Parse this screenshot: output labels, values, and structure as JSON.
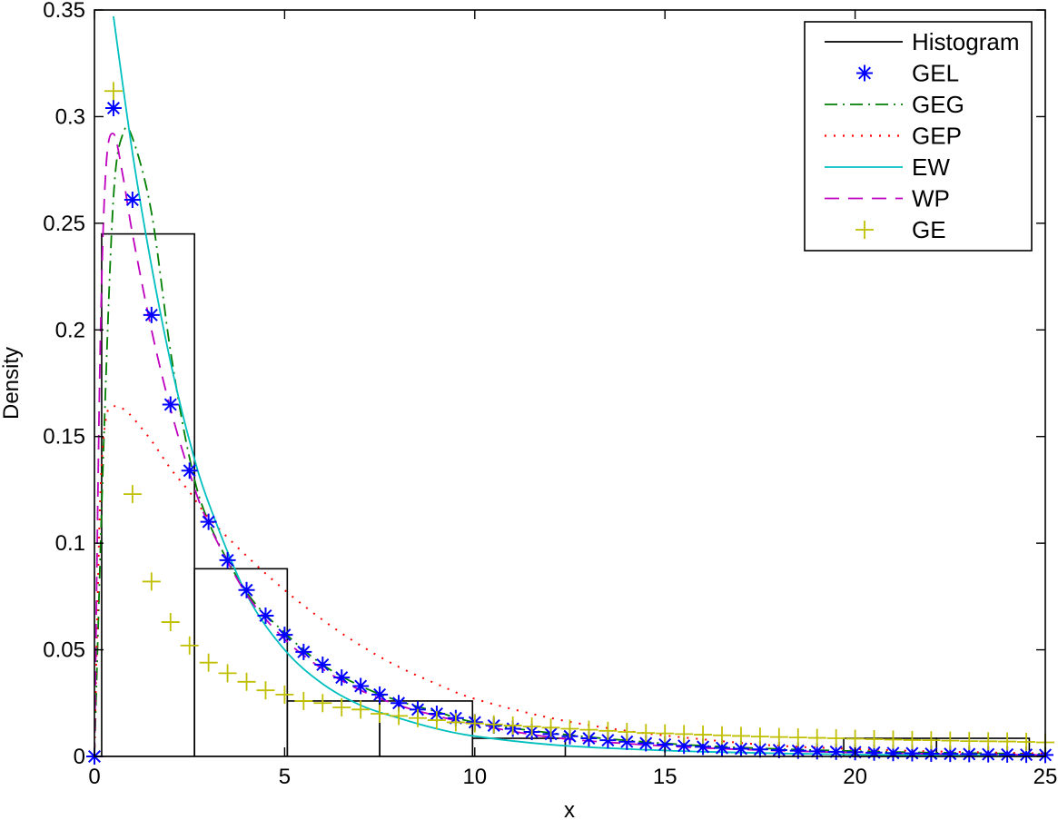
{
  "chart_data": {
    "type": "line",
    "title": "",
    "xlabel": "x",
    "ylabel": "Density",
    "xlim": [
      0,
      25
    ],
    "ylim": [
      0,
      0.35
    ],
    "grid": false,
    "legend_position": "upper right",
    "xticks": [
      "0",
      "5",
      "10",
      "15",
      "20",
      "25"
    ],
    "yticks": [
      "0",
      "0.05",
      "0.1",
      "0.15",
      "0.2",
      "0.25",
      "0.3",
      "0.35"
    ],
    "histogram": {
      "name": "Histogram",
      "color": "#000000",
      "bin_edges": [
        0.19,
        2.63,
        5.07,
        7.5,
        9.94,
        12.38,
        14.82,
        17.26,
        19.7,
        22.14,
        24.58
      ],
      "heights": [
        0.245,
        0.088,
        0.026,
        0.026,
        0.0085,
        0.0,
        0.0,
        0.0,
        0.0085,
        0.0085
      ]
    },
    "series": [
      {
        "name": "GEL",
        "style": "marker-star",
        "color": "#0000ff",
        "x": [
          0,
          0.5,
          1,
          1.5,
          2,
          2.5,
          3,
          3.5,
          4,
          4.5,
          5,
          5.5,
          6,
          6.5,
          7,
          7.5,
          8,
          8.5,
          9,
          9.5,
          10,
          10.5,
          11,
          11.5,
          12,
          12.5,
          13,
          13.5,
          14,
          14.5,
          15,
          15.5,
          16,
          16.5,
          17,
          17.5,
          18,
          18.5,
          19,
          19.5,
          20,
          20.5,
          21,
          21.5,
          22,
          22.5,
          23,
          23.5,
          24,
          24.5,
          25
        ],
        "values": [
          0,
          0.304,
          0.261,
          0.207,
          0.165,
          0.134,
          0.11,
          0.092,
          0.078,
          0.066,
          0.057,
          0.049,
          0.043,
          0.037,
          0.033,
          0.029,
          0.025,
          0.022,
          0.02,
          0.018,
          0.016,
          0.0145,
          0.013,
          0.0115,
          0.0105,
          0.0095,
          0.0085,
          0.0076,
          0.0069,
          0.0062,
          0.0056,
          0.005,
          0.0045,
          0.004,
          0.0036,
          0.0033,
          0.003,
          0.0027,
          0.0024,
          0.0022,
          0.002,
          0.0018,
          0.0016,
          0.0015,
          0.0013,
          0.0012,
          0.0011,
          0.001,
          0.0009,
          0.0008,
          0.0007
        ]
      },
      {
        "name": "GEG",
        "style": "dash-dot",
        "color": "#007f00",
        "x": [
          0,
          0.25,
          0.5,
          0.75,
          1,
          1.5,
          2,
          2.5,
          3,
          4,
          5,
          6,
          7,
          8,
          9,
          10,
          12,
          14,
          16,
          18,
          20,
          22,
          25
        ],
        "values": [
          0,
          0.15,
          0.262,
          0.292,
          0.29,
          0.255,
          0.19,
          0.14,
          0.11,
          0.077,
          0.058,
          0.043,
          0.033,
          0.026,
          0.021,
          0.016,
          0.011,
          0.0075,
          0.005,
          0.0035,
          0.0025,
          0.0018,
          0.0012
        ]
      },
      {
        "name": "GEP",
        "style": "dotted",
        "color": "#ff0000",
        "x": [
          0,
          0.15,
          0.3,
          0.5,
          0.75,
          1,
          1.5,
          2,
          2.5,
          3,
          4,
          5,
          6,
          7,
          8,
          9,
          10,
          12,
          14,
          16,
          18,
          20,
          22,
          25
        ],
        "values": [
          0,
          0.12,
          0.158,
          0.164,
          0.163,
          0.159,
          0.148,
          0.135,
          0.124,
          0.112,
          0.094,
          0.078,
          0.064,
          0.052,
          0.042,
          0.034,
          0.027,
          0.018,
          0.012,
          0.008,
          0.005,
          0.0035,
          0.0024,
          0.0014
        ]
      },
      {
        "name": "EW",
        "style": "solid",
        "color": "#00bfbf",
        "x": [
          0.5,
          1,
          1.5,
          2,
          2.5,
          3,
          4,
          5,
          6,
          7,
          8,
          9,
          10,
          12,
          14,
          16,
          18,
          20,
          22,
          25
        ],
        "values": [
          0.347,
          0.283,
          0.23,
          0.185,
          0.148,
          0.119,
          0.076,
          0.05,
          0.034,
          0.024,
          0.018,
          0.013,
          0.0095,
          0.0055,
          0.0035,
          0.0022,
          0.0014,
          0.0009,
          0.0006,
          0.0003
        ]
      },
      {
        "name": "WP",
        "style": "dashed",
        "color": "#bf00bf",
        "x": [
          0,
          0.15,
          0.3,
          0.5,
          0.75,
          1,
          1.5,
          2,
          2.5,
          3,
          4,
          5,
          6,
          7,
          8,
          9,
          10,
          12,
          14,
          16,
          18,
          20,
          22,
          25
        ],
        "values": [
          0,
          0.19,
          0.275,
          0.292,
          0.272,
          0.245,
          0.2,
          0.163,
          0.133,
          0.109,
          0.076,
          0.055,
          0.041,
          0.031,
          0.024,
          0.019,
          0.015,
          0.009,
          0.006,
          0.004,
          0.0027,
          0.0018,
          0.0012,
          0.0007
        ]
      },
      {
        "name": "GE",
        "style": "marker-plus",
        "color": "#bfbf00",
        "x": [
          0.5,
          1,
          1.5,
          2,
          2.5,
          3,
          3.5,
          4,
          4.5,
          5,
          5.5,
          6,
          6.5,
          7,
          7.5,
          8,
          8.5,
          9,
          9.5,
          10,
          10.5,
          11,
          11.5,
          12,
          12.5,
          13,
          13.5,
          14,
          14.5,
          15,
          15.5,
          16,
          16.5,
          17,
          17.5,
          18,
          18.5,
          19,
          19.5,
          20,
          20.5,
          21,
          21.5,
          22,
          22.5,
          23,
          23.5,
          24,
          24.5,
          25
        ],
        "values": [
          0.312,
          0.123,
          0.082,
          0.063,
          0.052,
          0.044,
          0.039,
          0.035,
          0.031,
          0.029,
          0.026,
          0.025,
          0.023,
          0.022,
          0.02,
          0.019,
          0.018,
          0.017,
          0.016,
          0.0155,
          0.015,
          0.0145,
          0.014,
          0.0135,
          0.013,
          0.0125,
          0.012,
          0.0115,
          0.011,
          0.0108,
          0.0105,
          0.0102,
          0.0099,
          0.0096,
          0.0093,
          0.0091,
          0.0089,
          0.0087,
          0.0085,
          0.0083,
          0.0081,
          0.0079,
          0.0077,
          0.0076,
          0.0074,
          0.0072,
          0.0071,
          0.007,
          0.0068,
          0.0066
        ]
      }
    ]
  },
  "legend": {
    "items": [
      "Histogram",
      "GEL",
      "GEG",
      "GEP",
      "EW",
      "WP",
      "GE"
    ]
  }
}
